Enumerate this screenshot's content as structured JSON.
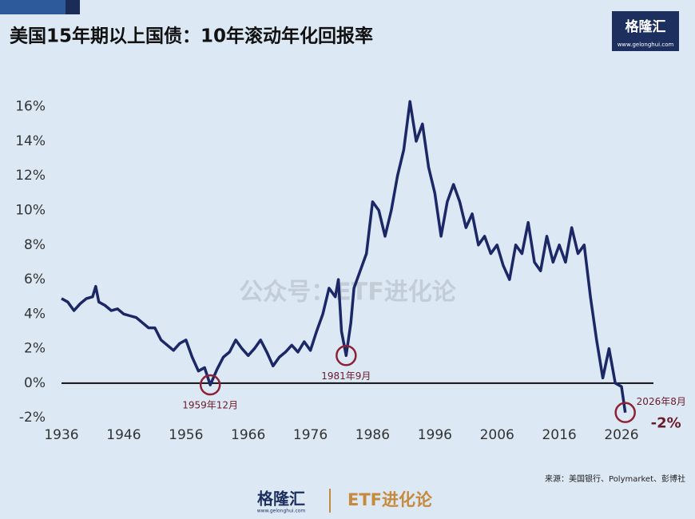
{
  "chart_data": {
    "type": "line",
    "title": "美国15年期以上国债：10年滚动年化回报率",
    "watermark": "公众号：ETF进化论",
    "source": "来源：美国银行、Polymarket、彭博社",
    "logo": {
      "name": "格隆汇",
      "url": "www.gelonghui.com"
    },
    "footer": {
      "left": "格隆汇",
      "left_url": "www.gelonghui.com",
      "right": "ETF进化论"
    },
    "x": [
      1936,
      1937,
      1938,
      1939,
      1940,
      1941,
      1941.5,
      1942,
      1943,
      1944,
      1945,
      1946,
      1947,
      1948,
      1949,
      1950,
      1951,
      1952,
      1953,
      1954,
      1955,
      1956,
      1957,
      1958,
      1959,
      1959.9,
      1961,
      1962,
      1963,
      1964,
      1965,
      1966,
      1967,
      1968,
      1969,
      1970,
      1971,
      1972,
      1973,
      1974,
      1975,
      1976,
      1977,
      1978,
      1979,
      1980,
      1980.5,
      1981,
      1981.75,
      1982.5,
      1983,
      1984,
      1985,
      1986,
      1987,
      1988,
      1989,
      1990,
      1991,
      1992,
      1993,
      1994,
      1995,
      1996,
      1997,
      1998,
      1999,
      2000,
      2001,
      2002,
      2003,
      2004,
      2005,
      2006,
      2007,
      2008,
      2009,
      2010,
      2011,
      2012,
      2013,
      2014,
      2015,
      2016,
      2017,
      2018,
      2019,
      2020,
      2021,
      2022,
      2023,
      2024,
      2025,
      2026,
      2026.6
    ],
    "series": [
      {
        "name": "10年滚动年化回报率",
        "color": "#1c2766",
        "values": [
          4.9,
          4.7,
          4.2,
          4.6,
          4.9,
          5.0,
          5.6,
          4.7,
          4.5,
          4.2,
          4.3,
          4.0,
          3.9,
          3.8,
          3.5,
          3.2,
          3.2,
          2.5,
          2.2,
          1.9,
          2.3,
          2.5,
          1.5,
          0.7,
          0.9,
          -0.1,
          0.8,
          1.5,
          1.8,
          2.5,
          2.0,
          1.6,
          2.0,
          2.5,
          1.8,
          1.0,
          1.5,
          1.8,
          2.2,
          1.8,
          2.4,
          1.9,
          3.0,
          4.0,
          5.5,
          5.0,
          6.0,
          3.0,
          1.6,
          3.5,
          5.5,
          6.5,
          7.5,
          10.5,
          10.0,
          8.5,
          10.0,
          12.0,
          13.5,
          16.3,
          14.0,
          15.0,
          12.5,
          11.0,
          8.5,
          10.5,
          11.5,
          10.5,
          9.0,
          9.8,
          8.0,
          8.5,
          7.5,
          8.0,
          6.8,
          6.0,
          8.0,
          7.5,
          9.3,
          7.0,
          6.5,
          8.5,
          7.0,
          8.0,
          7.0,
          9.0,
          7.5,
          8.0,
          5.0,
          2.5,
          0.3,
          2.0,
          0.0,
          -0.2,
          -1.7
        ]
      }
    ],
    "xlim": [
      1936,
      2026
    ],
    "xticks": [
      1936,
      1946,
      1956,
      1966,
      1976,
      1986,
      1996,
      2006,
      2016,
      2026
    ],
    "ylim": [
      -2.5,
      17
    ],
    "yticks": [
      {
        "value": -2,
        "label": "-2%"
      },
      {
        "value": 0,
        "label": "0%"
      },
      {
        "value": 2,
        "label": "2%"
      },
      {
        "value": 4,
        "label": "4%"
      },
      {
        "value": 6,
        "label": "6%"
      },
      {
        "value": 8,
        "label": "8%"
      },
      {
        "value": 10,
        "label": "10%"
      },
      {
        "value": 12,
        "label": "12%"
      },
      {
        "value": 14,
        "label": "14%"
      },
      {
        "value": 16,
        "label": "16%"
      }
    ],
    "reference_line": 0,
    "annotations": [
      {
        "text": "1959年12月",
        "x": 1959.9,
        "y": -0.1
      },
      {
        "text": "1981年9月",
        "x": 1981.75,
        "y": 1.6
      },
      {
        "text": "2026年8月",
        "x": 2026.6,
        "y": -1.7
      }
    ],
    "end_label": "-2%"
  }
}
